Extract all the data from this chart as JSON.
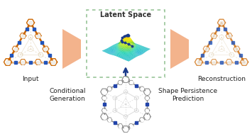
{
  "bg_color": "#ffffff",
  "latent_box_color": "#90c090",
  "arrow_color": "#1a3a8a",
  "trap_color": "#f0a070",
  "trap_alpha": 0.8,
  "label_input": "Input",
  "label_reconstruction": "Reconstruction",
  "label_conditional": "Conditional\nGeneration",
  "label_shape": "Shape Persistence\nPrediction",
  "label_latent": "Latent Space",
  "label_fontsize": 6.5,
  "cage_color_orange": "#cc6600",
  "cage_color_blue": "#2255bb",
  "cage_color_light": "#ddccaa",
  "cage_color_white": "#f0eee8",
  "cage2_color": "#888888",
  "cage2_color_blue": "#2244aa",
  "cage2_color_light": "#cccccc"
}
